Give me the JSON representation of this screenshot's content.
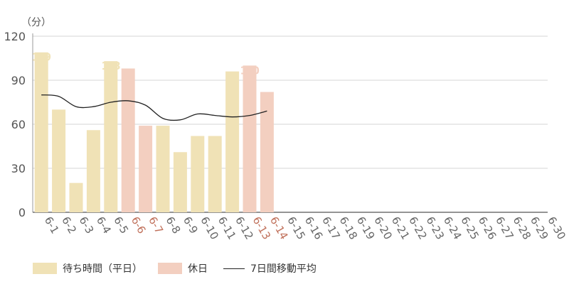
{
  "chart_data": {
    "type": "bar",
    "unit_label": "（分）",
    "ylim": [
      0,
      120
    ],
    "yticks": [
      0,
      30,
      60,
      90,
      120
    ],
    "grid": true,
    "categories": [
      "6-1",
      "6-2",
      "6-3",
      "6-4",
      "6-5",
      "6-6",
      "6-7",
      "6-8",
      "6-9",
      "6-10",
      "6-11",
      "6-12",
      "6-13",
      "6-14",
      "6-15",
      "6-16",
      "6-17",
      "6-18",
      "6-19",
      "6-20",
      "6-21",
      "6-22",
      "6-23",
      "6-24",
      "6-25",
      "6-26",
      "6-27",
      "6-28",
      "6-29",
      "6-30"
    ],
    "series": [
      {
        "name": "待ち時間（平日）",
        "color": "#f0e2b6",
        "type": "bar",
        "values": [
          109,
          70,
          20,
          56,
          103,
          null,
          null,
          59,
          41,
          52,
          52,
          96,
          null,
          null,
          null,
          null,
          null,
          null,
          null,
          null,
          null,
          null,
          null,
          null,
          null,
          null,
          null,
          null,
          null,
          null
        ]
      },
      {
        "name": "休日",
        "color": "#f3cfc0",
        "type": "bar",
        "values": [
          null,
          null,
          null,
          null,
          null,
          98,
          59,
          null,
          null,
          null,
          null,
          null,
          100,
          82,
          null,
          null,
          null,
          null,
          null,
          null,
          null,
          null,
          null,
          null,
          null,
          null,
          null,
          null,
          null,
          null
        ]
      },
      {
        "name": "7日間移動平均",
        "color": "#222222",
        "type": "line",
        "values": [
          80,
          79,
          72,
          72,
          75,
          76,
          73,
          64,
          63,
          67,
          66,
          65,
          66,
          69,
          null,
          null,
          null,
          null,
          null,
          null,
          null,
          null,
          null,
          null,
          null,
          null,
          null,
          null,
          null,
          null
        ]
      }
    ],
    "holiday_categories": [
      "6-6",
      "6-7",
      "6-13",
      "6-14"
    ],
    "weekday_tick_color": "#666666",
    "holiday_tick_color": "#c0705a",
    "data_label_color": "#f0e2b6",
    "holiday_label_color": "#f3cfc0"
  },
  "legend": {
    "weekday": "待ち時間（平日）",
    "holiday": "休日",
    "average": "7日間移動平均"
  }
}
